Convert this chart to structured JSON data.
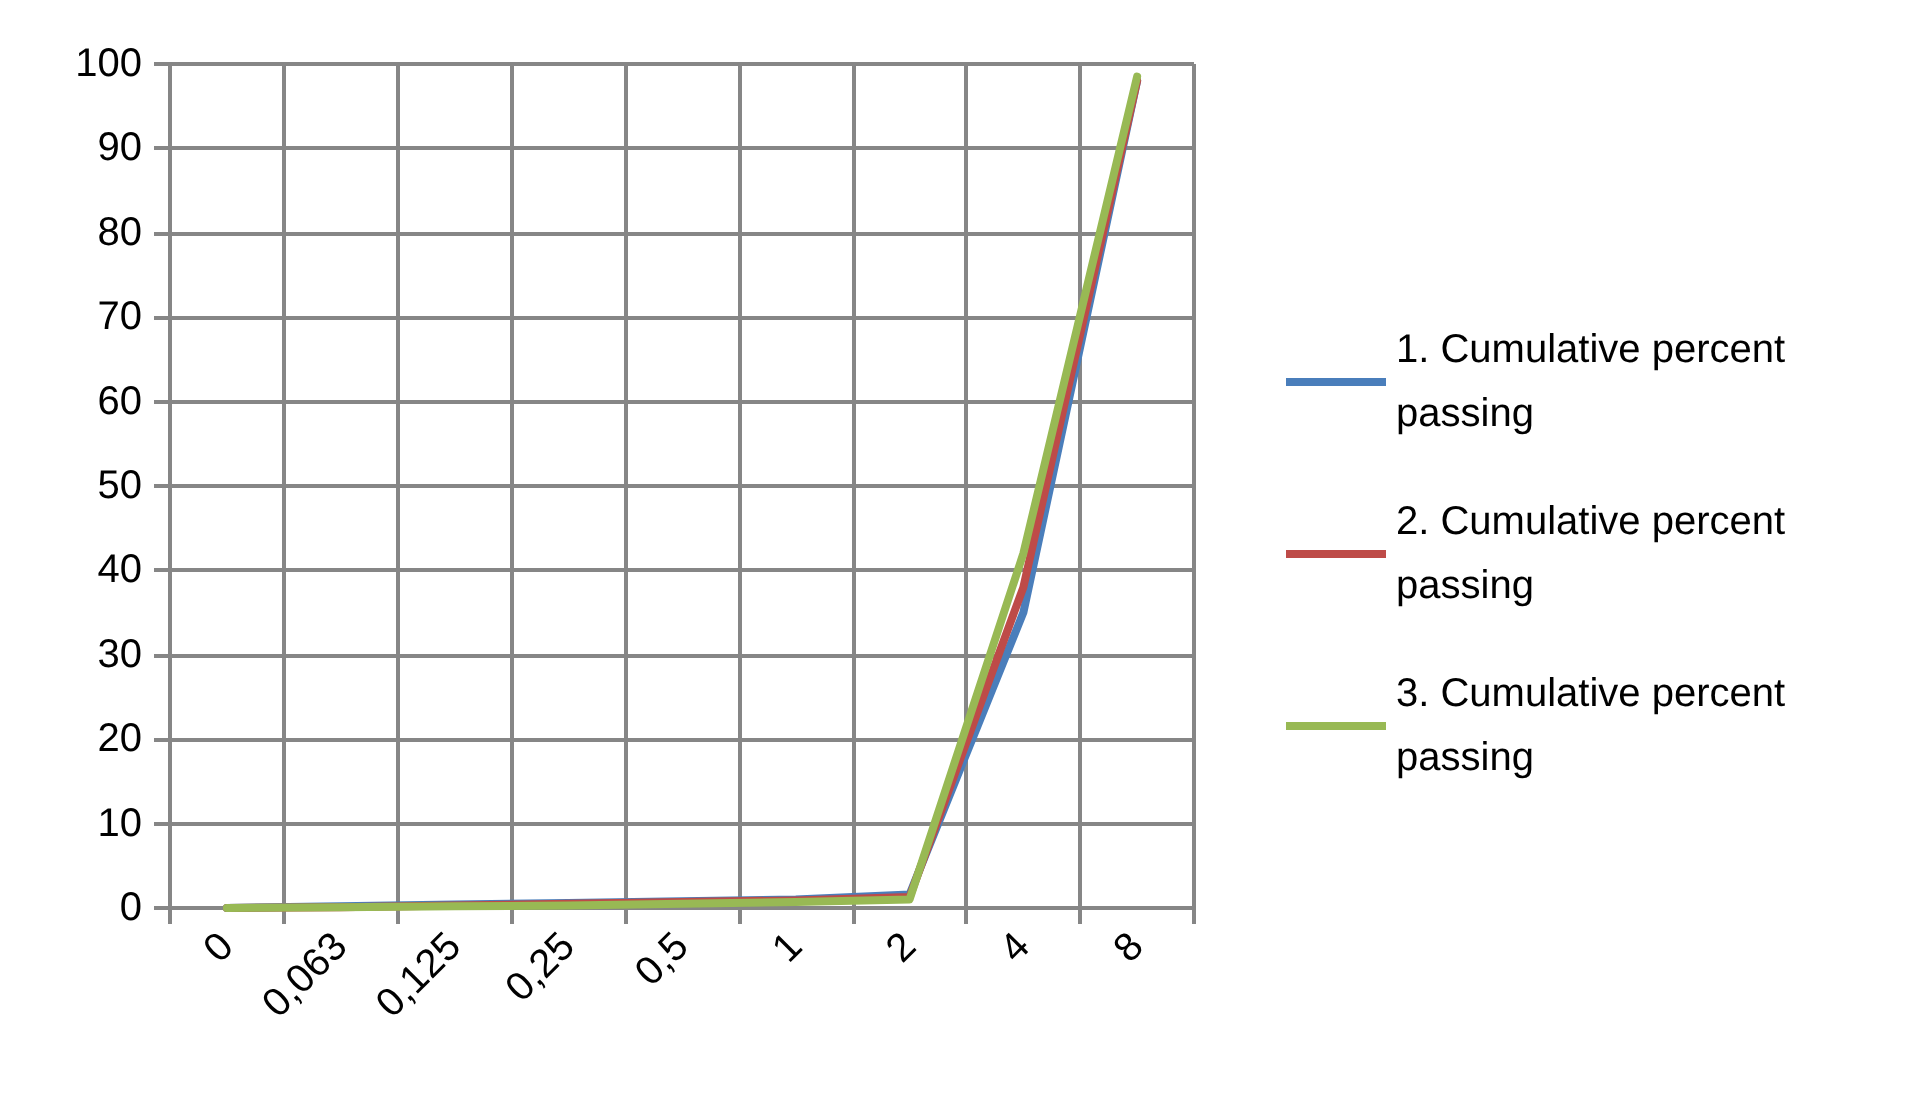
{
  "chart_data": {
    "type": "line",
    "categories": [
      "0",
      "0,063",
      "0,125",
      "0,25",
      "0,5",
      "1",
      "2",
      "4",
      "8"
    ],
    "series": [
      {
        "name": "1. Cumulative percent passing",
        "color": "#4a7ebb",
        "values": [
          0,
          0.2,
          0.4,
          0.6,
          0.8,
          1,
          1.6,
          35,
          98
        ]
      },
      {
        "name": "2. Cumulative percent passing",
        "color": "#be4b48",
        "values": [
          0,
          0.1,
          0.3,
          0.5,
          0.7,
          0.9,
          1.3,
          38,
          98
        ]
      },
      {
        "name": "3. Cumulative percent passing",
        "color": "#98b954",
        "values": [
          0,
          0.1,
          0.2,
          0.3,
          0.5,
          0.7,
          1,
          42,
          98.5
        ]
      }
    ],
    "ylim": [
      0,
      100
    ],
    "yticks": [
      0,
      10,
      20,
      30,
      40,
      50,
      60,
      70,
      80,
      90,
      100
    ],
    "grid": true,
    "legend": "right",
    "marker": "none",
    "line_style": "solid"
  }
}
